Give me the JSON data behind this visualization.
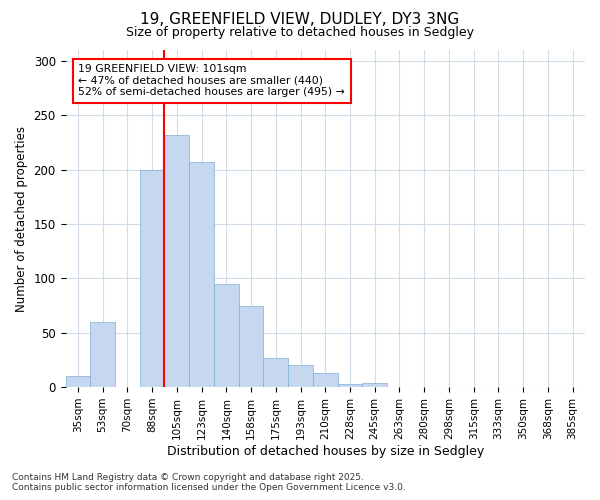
{
  "title_line1": "19, GREENFIELD VIEW, DUDLEY, DY3 3NG",
  "title_line2": "Size of property relative to detached houses in Sedgley",
  "xlabel": "Distribution of detached houses by size in Sedgley",
  "ylabel": "Number of detached properties",
  "annotation_line1": "19 GREENFIELD VIEW: 101sqm",
  "annotation_line2": "← 47% of detached houses are smaller (440)",
  "annotation_line3": "52% of semi-detached houses are larger (495) →",
  "footer_line1": "Contains HM Land Registry data © Crown copyright and database right 2025.",
  "footer_line2": "Contains public sector information licensed under the Open Government Licence v3.0.",
  "categories": [
    "35sqm",
    "53sqm",
    "70sqm",
    "88sqm",
    "105sqm",
    "123sqm",
    "140sqm",
    "158sqm",
    "175sqm",
    "193sqm",
    "210sqm",
    "228sqm",
    "245sqm",
    "263sqm",
    "280sqm",
    "298sqm",
    "315sqm",
    "333sqm",
    "350sqm",
    "368sqm",
    "385sqm"
  ],
  "values": [
    10,
    60,
    0,
    200,
    232,
    207,
    95,
    75,
    27,
    20,
    13,
    3,
    4,
    0,
    0,
    0,
    0,
    0,
    0,
    0,
    0
  ],
  "bar_color": "#c5d8f0",
  "bar_edge_color": "#7fafd4",
  "reference_line_color": "red",
  "reference_line_index": 3.5,
  "ylim": [
    0,
    310
  ],
  "yticks": [
    0,
    50,
    100,
    150,
    200,
    250,
    300
  ],
  "background_color": "#ffffff",
  "plot_bg_color": "#ffffff",
  "grid_color": "#d0dce8"
}
